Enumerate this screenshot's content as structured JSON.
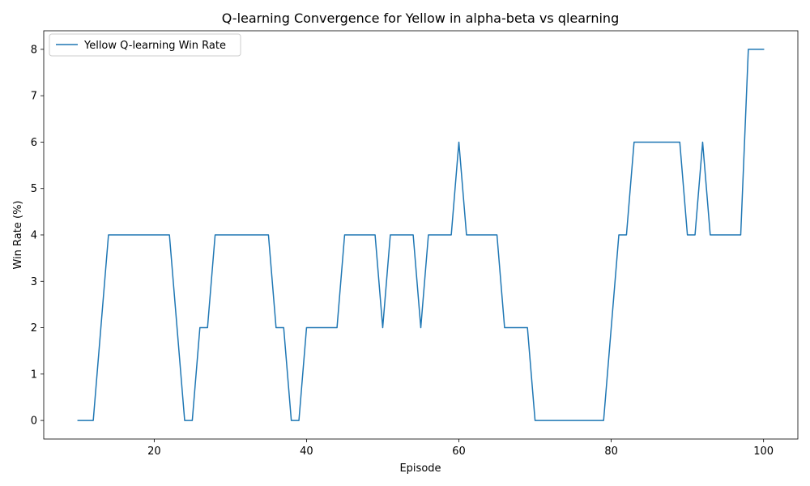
{
  "chart_data": {
    "type": "line",
    "title": "Q-learning Convergence for Yellow in alpha-beta vs qlearning",
    "xlabel": "Episode",
    "ylabel": "Win Rate (%)",
    "xlim": [
      5.5,
      104.5
    ],
    "ylim": [
      -0.4,
      8.4
    ],
    "xticks": [
      20,
      40,
      60,
      80,
      100
    ],
    "yticks": [
      0,
      1,
      2,
      3,
      4,
      5,
      6,
      7,
      8
    ],
    "grid": false,
    "legend_position": "top-left",
    "series": [
      {
        "name": "Yellow Q-learning Win Rate",
        "color": "#1f77b4",
        "x": [
          10,
          11,
          12,
          13,
          14,
          15,
          16,
          17,
          18,
          19,
          20,
          21,
          22,
          23,
          24,
          25,
          26,
          27,
          28,
          29,
          30,
          31,
          32,
          33,
          34,
          35,
          36,
          37,
          38,
          39,
          40,
          41,
          42,
          43,
          44,
          45,
          46,
          47,
          48,
          49,
          50,
          51,
          52,
          53,
          54,
          55,
          56,
          57,
          58,
          59,
          60,
          61,
          62,
          63,
          64,
          65,
          66,
          67,
          68,
          69,
          70,
          71,
          72,
          73,
          74,
          75,
          76,
          77,
          78,
          79,
          80,
          81,
          82,
          83,
          84,
          85,
          86,
          87,
          88,
          89,
          90,
          91,
          92,
          93,
          94,
          95,
          96,
          97,
          98,
          99,
          100
        ],
        "values": [
          0,
          0,
          0,
          2,
          4,
          4,
          4,
          4,
          4,
          4,
          4,
          4,
          4,
          2,
          0,
          0,
          2,
          2,
          4,
          4,
          4,
          4,
          4,
          4,
          4,
          4,
          2,
          2,
          0,
          0,
          2,
          2,
          2,
          2,
          2,
          4,
          4,
          4,
          4,
          4,
          2,
          4,
          4,
          4,
          4,
          2,
          4,
          4,
          4,
          4,
          6,
          4,
          4,
          4,
          4,
          4,
          2,
          2,
          2,
          2,
          0,
          0,
          0,
          0,
          0,
          0,
          0,
          0,
          0,
          0,
          2,
          4,
          4,
          6,
          6,
          6,
          6,
          6,
          6,
          6,
          4,
          4,
          6,
          4,
          4,
          4,
          4,
          4,
          8,
          8,
          8
        ]
      }
    ]
  }
}
